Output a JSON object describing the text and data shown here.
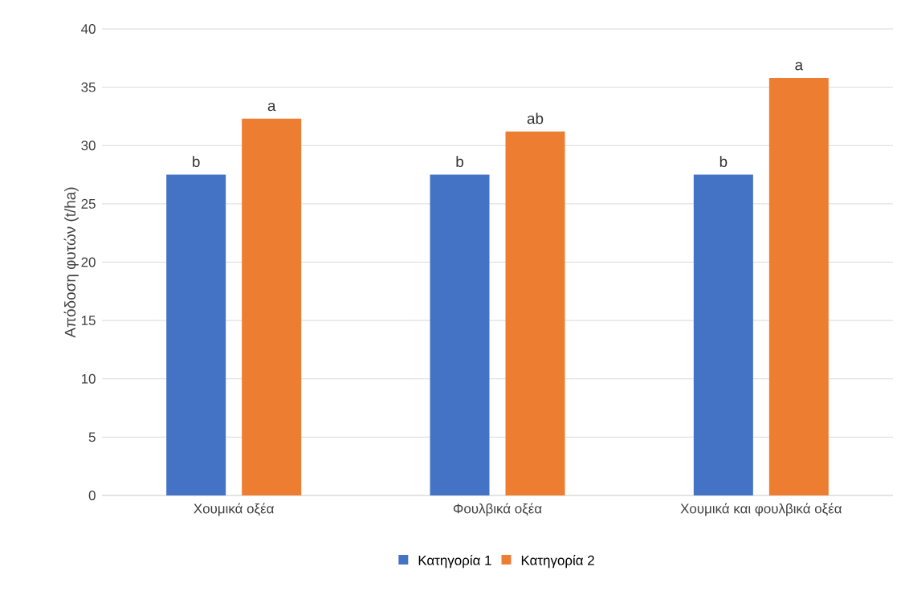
{
  "chart_data": {
    "type": "bar",
    "ylabel": "Απόδοση φυτών (t/ha)",
    "categories": [
      "Χουμικά οξέα",
      "Φουλβικά οξέα",
      "Χουμικά και φουλβικά οξέα"
    ],
    "series": [
      {
        "name": "Κατηγορία 1",
        "color": "#4472c4",
        "values": [
          27.5,
          27.5,
          27.5
        ],
        "value_labels": [
          "b",
          "b",
          "b"
        ]
      },
      {
        "name": "Κατηγορία 2",
        "color": "#ed7d31",
        "values": [
          32.3,
          31.2,
          35.8
        ],
        "value_labels": [
          "a",
          "ab",
          "a"
        ]
      }
    ],
    "ylim": [
      0,
      40
    ],
    "yticks": [
      0,
      5,
      10,
      15,
      20,
      25,
      30,
      35,
      40
    ],
    "grid": "y",
    "legend": "bottom"
  }
}
